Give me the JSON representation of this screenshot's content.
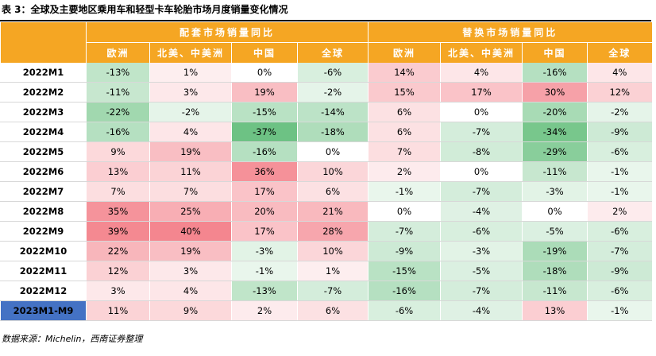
{
  "title": "表 3：全球及主要地区乘用车和轻型卡车轮胎市场月度销量变化情况",
  "groups": {
    "oe": "配套市场销量同比",
    "replacement": "替换市场销量同比"
  },
  "columns": [
    "欧洲",
    "北美、中美洲",
    "中国",
    "全球",
    "欧洲",
    "北美、中美洲",
    "中国",
    "全球"
  ],
  "rows": [
    {
      "label": "2022M1",
      "values": [
        "-13%",
        "1%",
        "0%",
        "-6%",
        "14%",
        "4%",
        "-16%",
        "4%"
      ]
    },
    {
      "label": "2022M2",
      "values": [
        "-11%",
        "3%",
        "19%",
        "-2%",
        "15%",
        "17%",
        "30%",
        "12%"
      ]
    },
    {
      "label": "2022M3",
      "values": [
        "-22%",
        "-2%",
        "-15%",
        "-14%",
        "6%",
        "0%",
        "-20%",
        "-2%"
      ]
    },
    {
      "label": "2022M4",
      "values": [
        "-16%",
        "4%",
        "-37%",
        "-18%",
        "6%",
        "-7%",
        "-34%",
        "-9%"
      ]
    },
    {
      "label": "2022M5",
      "values": [
        "9%",
        "19%",
        "-16%",
        "0%",
        "7%",
        "-8%",
        "-29%",
        "-6%"
      ]
    },
    {
      "label": "2022M6",
      "values": [
        "13%",
        "11%",
        "36%",
        "10%",
        "2%",
        "0%",
        "-11%",
        "-1%"
      ]
    },
    {
      "label": "2022M7",
      "values": [
        "7%",
        "7%",
        "17%",
        "6%",
        "-1%",
        "-7%",
        "-3%",
        "-1%"
      ]
    },
    {
      "label": "2022M8",
      "values": [
        "35%",
        "25%",
        "20%",
        "21%",
        "0%",
        "-4%",
        "0%",
        "2%"
      ]
    },
    {
      "label": "2022M9",
      "values": [
        "39%",
        "40%",
        "17%",
        "28%",
        "-7%",
        "-6%",
        "-5%",
        "-6%"
      ]
    },
    {
      "label": "2022M10",
      "values": [
        "22%",
        "19%",
        "-3%",
        "10%",
        "-9%",
        "-3%",
        "-19%",
        "-7%"
      ]
    },
    {
      "label": "2022M11",
      "values": [
        "12%",
        "3%",
        "-1%",
        "1%",
        "-15%",
        "-5%",
        "-18%",
        "-9%"
      ]
    },
    {
      "label": "2022M12",
      "values": [
        "3%",
        "4%",
        "-13%",
        "-7%",
        "-16%",
        "-7%",
        "-11%",
        "-6%"
      ]
    },
    {
      "label": "2023M1-M9",
      "values": [
        "11%",
        "9%",
        "2%",
        "6%",
        "-6%",
        "-4%",
        "13%",
        "-1%"
      ],
      "highlight": true
    }
  ],
  "source": "数据来源：Michelin，西南证券整理",
  "colors": {
    "header": "#f5a623",
    "highlight_label": "#4472c4",
    "positive": "#f4868f",
    "negative": "#63be7b",
    "neutral": "#ffffff"
  }
}
